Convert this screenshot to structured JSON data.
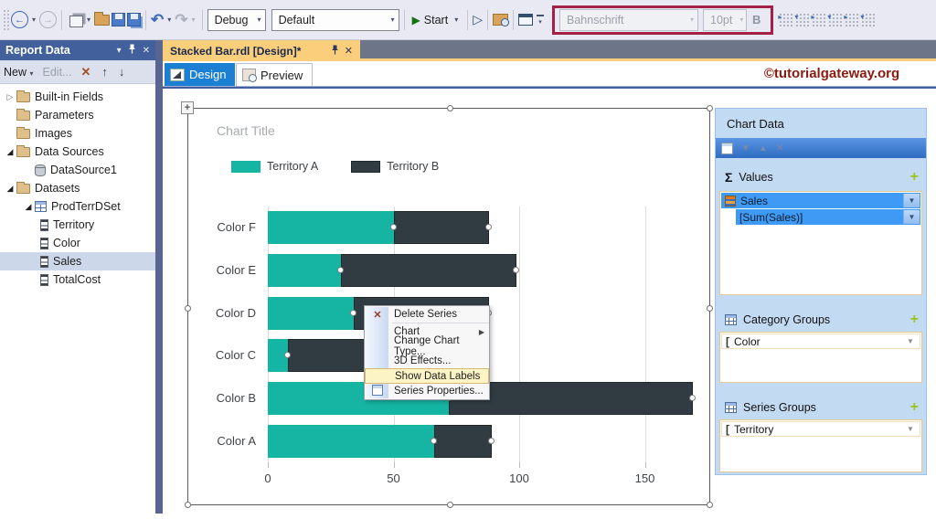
{
  "toolbar": {
    "debug": "Debug",
    "default": "Default",
    "start": "Start",
    "font_name": "Bahnschrift",
    "font_size": "10pt",
    "bold": "B"
  },
  "document_tab": {
    "title": "Stacked Bar.rdl [Design]*"
  },
  "mode_tabs": {
    "design": "Design",
    "preview": "Preview"
  },
  "banner": {
    "text": "©tutorialgateway.org"
  },
  "report_data": {
    "title": "Report Data",
    "toolbar": {
      "new": "New",
      "edit": "Edit..."
    },
    "tree": [
      {
        "label": "Built-in Fields"
      },
      {
        "label": "Parameters"
      },
      {
        "label": "Images"
      },
      {
        "label": "Data Sources"
      },
      {
        "label": "DataSource1"
      },
      {
        "label": "Datasets"
      },
      {
        "label": "ProdTerrDSet"
      },
      {
        "label": "Territory"
      },
      {
        "label": "Color"
      },
      {
        "label": "Sales"
      },
      {
        "label": "TotalCost"
      }
    ]
  },
  "context_menu": {
    "items": [
      {
        "label": "Delete Series"
      },
      {
        "label": "Chart"
      },
      {
        "label": "Change Chart Type..."
      },
      {
        "label": "3D Effects..."
      },
      {
        "label": "Show Data Labels"
      },
      {
        "label": "Series Properties..."
      }
    ]
  },
  "chart_data_panel": {
    "title": "Chart Data",
    "sigma": "Σ",
    "values_header": "Values",
    "values_rows": [
      {
        "label": "Sales"
      },
      {
        "label": "[Sum(Sales)]"
      }
    ],
    "category_groups_header": "Category Groups",
    "category_rows": [
      {
        "label": "Color"
      }
    ],
    "series_groups_header": "Series Groups",
    "series_rows": [
      {
        "label": "Territory"
      }
    ]
  },
  "chart_data": {
    "type": "bar",
    "orientation": "horizontal",
    "stacked": true,
    "title": "Chart Title",
    "categories": [
      "Color F",
      "Color E",
      "Color D",
      "Color C",
      "Color B",
      "Color A"
    ],
    "series": [
      {
        "name": "Territory A",
        "color": "#16B5A3",
        "values": [
          50,
          29,
          34,
          8,
          72,
          66
        ]
      },
      {
        "name": "Territory B",
        "color": "#313C42",
        "values": [
          38,
          70,
          54,
          68,
          97,
          23
        ]
      }
    ],
    "x_ticks": [
      0,
      50,
      100,
      150
    ],
    "xlim": [
      0,
      174
    ],
    "grid": true,
    "legend_position": "top-left"
  },
  "colors": {
    "active_tab": "#FBCE7B",
    "highlight_box": "#A52045",
    "banner_text": "#8B1A0F",
    "menu_highlight": "#FCF4C4"
  }
}
